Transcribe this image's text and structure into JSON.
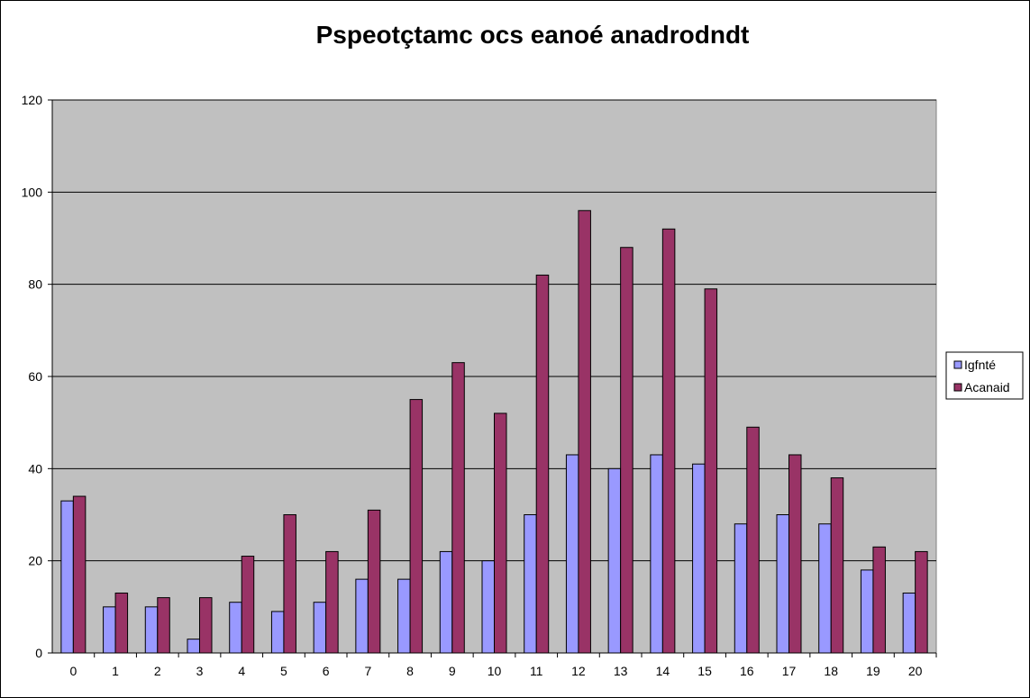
{
  "chart_data": {
    "type": "bar",
    "title": "Pspeotçtamc ocs eanoé anadrodndt",
    "xlabel": "",
    "ylabel": "",
    "categories": [
      "0",
      "1",
      "2",
      "3",
      "4",
      "5",
      "6",
      "7",
      "8",
      "9",
      "10",
      "11",
      "12",
      "13",
      "14",
      "15",
      "16",
      "17",
      "18",
      "19",
      "20"
    ],
    "series": [
      {
        "name": "Igfnté",
        "color": "#9999FF",
        "values": [
          33,
          10,
          10,
          3,
          11,
          9,
          11,
          16,
          16,
          22,
          20,
          30,
          43,
          40,
          43,
          41,
          28,
          30,
          28,
          18,
          13
        ]
      },
      {
        "name": "Acanaid",
        "color": "#993366",
        "values": [
          34,
          13,
          12,
          12,
          21,
          30,
          22,
          31,
          55,
          63,
          52,
          82,
          96,
          88,
          92,
          79,
          49,
          43,
          38,
          23,
          22
        ]
      }
    ],
    "ylim": [
      0,
      120
    ],
    "yticks": [
      0,
      20,
      40,
      60,
      80,
      100,
      120
    ],
    "grid": true,
    "plot_background": "#C0C0C0",
    "legend_position": "right"
  }
}
